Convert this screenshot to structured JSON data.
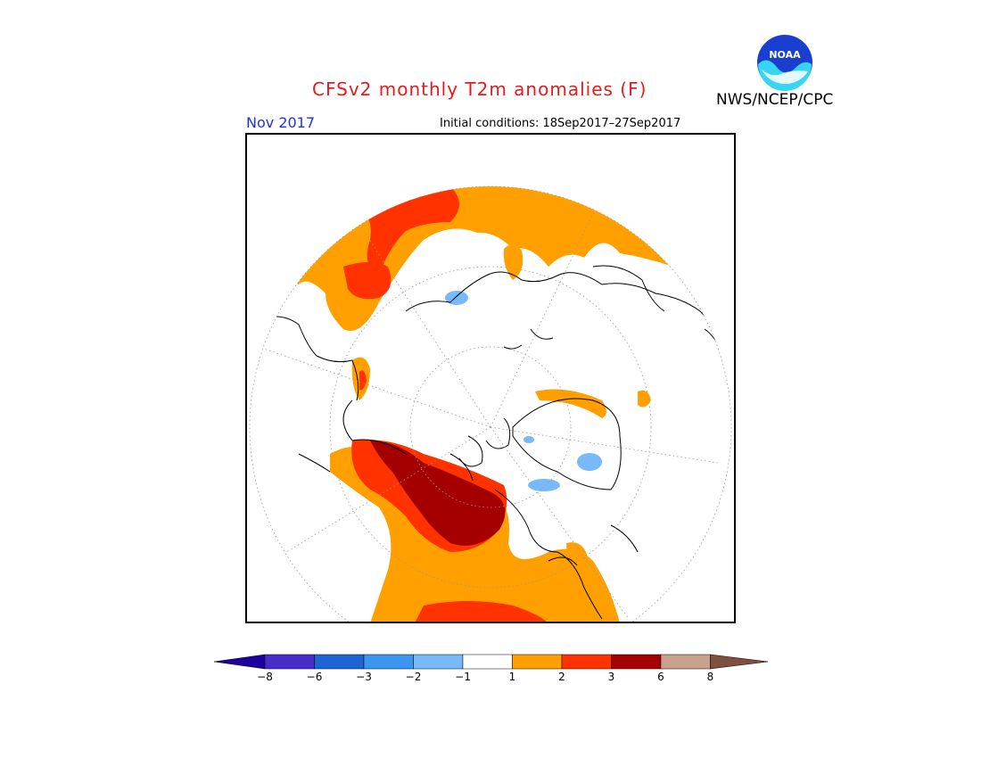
{
  "header": {
    "title": "CFSv2 monthly T2m anomalies (F)",
    "agency": "NWS/NCEP/CPC",
    "logo_text": "NOAA",
    "month": "Nov 2017",
    "initial_conditions": "Initial conditions: 18Sep2017–27Sep2017"
  },
  "map": {
    "projection": "north-polar-stereographic",
    "background_color": "#ffffff",
    "coastline_color": "#000000",
    "graticule": "dotted"
  },
  "legend": {
    "left_extend_color": "#1e00a0",
    "right_extend_color": "#80503c",
    "colors": [
      "#4b2cc8",
      "#1e64d2",
      "#3c96f0",
      "#78b9fa",
      "#ffffff",
      "#ffa000",
      "#ff3200",
      "#a50000",
      "#c8a08c"
    ],
    "tick_labels": [
      "−8",
      "−6",
      "−3",
      "−2",
      "−1",
      "1",
      "2",
      "3",
      "6",
      "8"
    ]
  }
}
